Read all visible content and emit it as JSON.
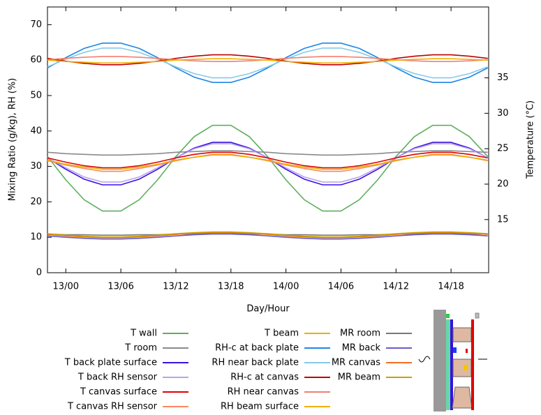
{
  "chart_data": {
    "type": "line",
    "x_label": "Day/Hour",
    "y_label": "Mixing Ratio (g/kg), RH (%)",
    "y2_label": "Temperature (°C)",
    "x": [
      -2,
      0,
      2,
      4,
      6,
      8,
      10,
      12,
      14,
      16,
      18,
      20,
      22,
      24,
      26,
      28,
      30,
      32,
      34,
      36,
      38,
      40,
      42,
      44,
      46
    ],
    "xlim": [
      -2,
      46.1
    ],
    "xticks": [
      {
        "value": 0,
        "label": "13/00"
      },
      {
        "value": 6,
        "label": "13/06"
      },
      {
        "value": 12,
        "label": "13/12"
      },
      {
        "value": 18,
        "label": "13/18"
      },
      {
        "value": 24,
        "label": "14/00"
      },
      {
        "value": 30,
        "label": "14/06"
      },
      {
        "value": 36,
        "label": "14/12"
      },
      {
        "value": 42,
        "label": "14/18"
      }
    ],
    "ylim": [
      0,
      75
    ],
    "yticks": [
      0,
      10,
      20,
      30,
      40,
      50,
      60,
      70
    ],
    "y2lim": [
      7.5,
      45
    ],
    "y2ticks": [
      15,
      20,
      25,
      30,
      35
    ],
    "series": [
      {
        "name": "T wall",
        "color": "#5fae5f",
        "axis": "y2",
        "values": [
          23.9,
          20.6,
          17.8,
          16.2,
          16.2,
          17.8,
          20.6,
          23.9,
          26.7,
          28.3,
          28.3,
          26.7,
          23.9,
          20.6,
          17.8,
          16.2,
          16.2,
          17.8,
          20.6,
          23.9,
          26.7,
          28.3,
          28.3,
          26.7,
          23.9
        ]
      },
      {
        "name": "T room",
        "color": "#8a8a8a",
        "axis": "y2",
        "values": [
          24.5,
          24.3,
          24.2,
          24.1,
          24.1,
          24.2,
          24.3,
          24.5,
          24.6,
          24.7,
          24.7,
          24.6,
          24.5,
          24.3,
          24.2,
          24.1,
          24.1,
          24.2,
          24.3,
          24.5,
          24.6,
          24.7,
          24.7,
          24.6,
          24.5
        ]
      },
      {
        "name": "T back plate surface",
        "color": "#3a10e0",
        "axis": "y2",
        "values": [
          23.7,
          22.1,
          20.7,
          19.9,
          19.9,
          20.7,
          22.1,
          23.7,
          25.1,
          25.9,
          25.9,
          25.1,
          23.7,
          22.1,
          20.7,
          19.9,
          19.9,
          20.7,
          22.1,
          23.7,
          25.1,
          25.9,
          25.9,
          25.1,
          23.7
        ]
      },
      {
        "name": "T back RH sensor",
        "color": "#b8a0f0",
        "axis": "y2",
        "values": [
          23.7,
          22.3,
          21.0,
          20.3,
          20.3,
          21.0,
          22.3,
          23.7,
          25.0,
          25.7,
          25.7,
          25.0,
          23.7,
          22.3,
          21.0,
          20.3,
          20.3,
          21.0,
          22.3,
          23.7,
          25.0,
          25.7,
          25.7,
          25.0,
          23.7
        ]
      },
      {
        "name": "T canvas surface",
        "color": "#e00000",
        "axis": "y2",
        "values": [
          23.7,
          23.1,
          22.6,
          22.3,
          22.3,
          22.6,
          23.1,
          23.7,
          24.2,
          24.5,
          24.5,
          24.2,
          23.7,
          23.1,
          22.6,
          22.3,
          22.3,
          22.6,
          23.1,
          23.7,
          24.2,
          24.5,
          24.5,
          24.2,
          23.7
        ]
      },
      {
        "name": "T canvas RH sensor",
        "color": "#f88a60",
        "axis": "y2",
        "values": [
          23.3,
          22.7,
          22.2,
          21.8,
          21.8,
          22.2,
          22.7,
          23.3,
          23.8,
          24.2,
          24.2,
          23.8,
          23.3,
          22.7,
          22.2,
          21.8,
          21.8,
          22.2,
          22.7,
          23.3,
          23.8,
          24.2,
          24.2,
          23.8,
          23.3
        ]
      },
      {
        "name": "T beam",
        "color": "#e8b000",
        "axis": "y2",
        "values": [
          23.4,
          22.8,
          22.4,
          22.1,
          22.1,
          22.4,
          22.8,
          23.4,
          23.8,
          24.1,
          24.1,
          23.8,
          23.4,
          22.8,
          22.4,
          22.1,
          22.1,
          22.4,
          22.8,
          23.4,
          23.8,
          24.1,
          24.1,
          23.8,
          23.4
        ]
      },
      {
        "name": "RH-c at back plate",
        "color": "#1e88e5",
        "axis": "y",
        "values": [
          57.8,
          60.7,
          63.3,
          64.8,
          64.8,
          63.3,
          60.7,
          57.8,
          55.2,
          53.7,
          53.7,
          55.2,
          57.8,
          60.7,
          63.3,
          64.8,
          64.8,
          63.3,
          60.7,
          57.8,
          55.2,
          53.7,
          53.7,
          55.2,
          57.8
        ]
      },
      {
        "name": "RH near back plate",
        "color": "#86c8e8",
        "axis": "y",
        "values": [
          58.1,
          60.3,
          62.2,
          63.4,
          63.4,
          62.2,
          60.3,
          58.1,
          56.2,
          55.0,
          55.0,
          56.2,
          58.1,
          60.3,
          62.2,
          63.4,
          63.4,
          62.2,
          60.3,
          58.1,
          56.2,
          55.0,
          55.0,
          56.2,
          58.1
        ]
      },
      {
        "name": "RH-c at canvas",
        "color": "#c00000",
        "axis": "y",
        "values": [
          60.5,
          59.7,
          59.1,
          58.7,
          58.7,
          59.1,
          59.7,
          60.5,
          61.1,
          61.5,
          61.5,
          61.1,
          60.5,
          59.7,
          59.1,
          58.7,
          58.7,
          59.1,
          59.7,
          60.5,
          61.1,
          61.5,
          61.5,
          61.1,
          60.5
        ]
      },
      {
        "name": "RH near canvas",
        "color": "#f08070",
        "axis": "y",
        "values": [
          60.1,
          60.5,
          60.8,
          61.0,
          61.0,
          60.8,
          60.5,
          60.1,
          59.8,
          59.6,
          59.6,
          59.8,
          60.1,
          60.5,
          60.8,
          61.0,
          61.0,
          60.8,
          60.5,
          60.1,
          59.8,
          59.6,
          59.6,
          59.8,
          60.1
        ]
      },
      {
        "name": "RH beam surface",
        "color": "#f0b000",
        "axis": "y",
        "values": [
          60.0,
          59.6,
          59.4,
          59.2,
          59.2,
          59.4,
          59.6,
          60.0,
          60.2,
          60.4,
          60.4,
          60.2,
          60.0,
          59.6,
          59.4,
          59.2,
          59.2,
          59.4,
          59.6,
          60.0,
          60.2,
          60.4,
          60.4,
          60.2,
          60.0
        ]
      },
      {
        "name": "MR room",
        "color": "#777777",
        "axis": "y",
        "values": [
          10.9,
          10.7,
          10.7,
          10.6,
          10.6,
          10.7,
          10.7,
          10.9,
          10.9,
          11.0,
          11.0,
          10.9,
          10.9,
          10.7,
          10.7,
          10.6,
          10.6,
          10.7,
          10.7,
          10.9,
          10.9,
          11.0,
          11.0,
          10.9,
          10.9
        ]
      },
      {
        "name": "MR back",
        "color": "#6a5acd",
        "axis": "y",
        "values": [
          10.4,
          10.0,
          9.7,
          9.5,
          9.5,
          9.7,
          10.0,
          10.4,
          10.7,
          10.9,
          10.9,
          10.7,
          10.4,
          10.0,
          9.7,
          9.5,
          9.5,
          9.7,
          10.0,
          10.4,
          10.7,
          10.9,
          10.9,
          10.7,
          10.4
        ]
      },
      {
        "name": "MR canvas",
        "color": "#f07020",
        "axis": "y",
        "values": [
          10.8,
          10.4,
          10.1,
          9.9,
          9.9,
          10.1,
          10.4,
          10.8,
          11.1,
          11.3,
          11.3,
          11.1,
          10.8,
          10.4,
          10.1,
          9.9,
          9.9,
          10.1,
          10.4,
          10.8,
          11.1,
          11.3,
          11.3,
          11.1,
          10.8
        ]
      },
      {
        "name": "MR beam",
        "color": "#c8a000",
        "axis": "y",
        "values": [
          11.0,
          10.6,
          10.3,
          10.1,
          10.1,
          10.3,
          10.6,
          11.0,
          11.3,
          11.5,
          11.5,
          11.3,
          11.0,
          10.6,
          10.3,
          10.1,
          10.1,
          10.3,
          10.6,
          11.0,
          11.3,
          11.5,
          11.5,
          11.3,
          11.0
        ]
      }
    ]
  }
}
